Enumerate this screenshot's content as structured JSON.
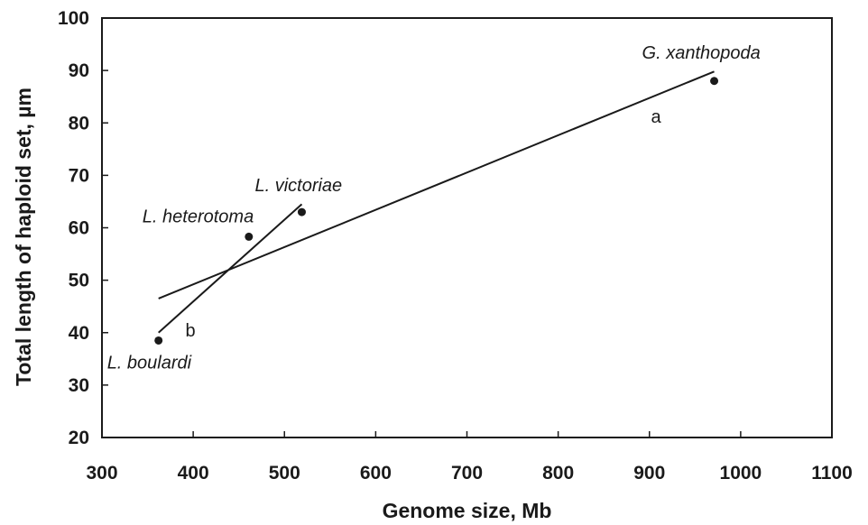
{
  "chart_data": {
    "type": "scatter",
    "xlabel": "Genome size, Mb",
    "ylabel": "Total length of haploid set, µm",
    "xlim": [
      300,
      1100
    ],
    "ylim": [
      20,
      100
    ],
    "xticks": [
      300,
      400,
      500,
      600,
      700,
      800,
      900,
      1000,
      1100
    ],
    "yticks": [
      20,
      30,
      40,
      50,
      60,
      70,
      80,
      90,
      100
    ],
    "grid": false,
    "colors": {
      "ink": "#1a1a1a",
      "background": "#ffffff"
    },
    "points": [
      {
        "label": "L. boulardi",
        "x": 362,
        "y": 38.5
      },
      {
        "label": "L. heterotoma",
        "x": 461,
        "y": 58.3
      },
      {
        "label": "L. victoriae",
        "x": 519,
        "y": 63
      },
      {
        "label": "G. xanthopoda",
        "x": 971,
        "y": 88
      }
    ],
    "fit_lines": [
      {
        "label": "a",
        "x": [
          362,
          971
        ],
        "y": [
          46.5,
          89.8
        ]
      },
      {
        "label": "b",
        "x": [
          362,
          519
        ],
        "y": [
          40,
          64.5
        ]
      }
    ]
  }
}
